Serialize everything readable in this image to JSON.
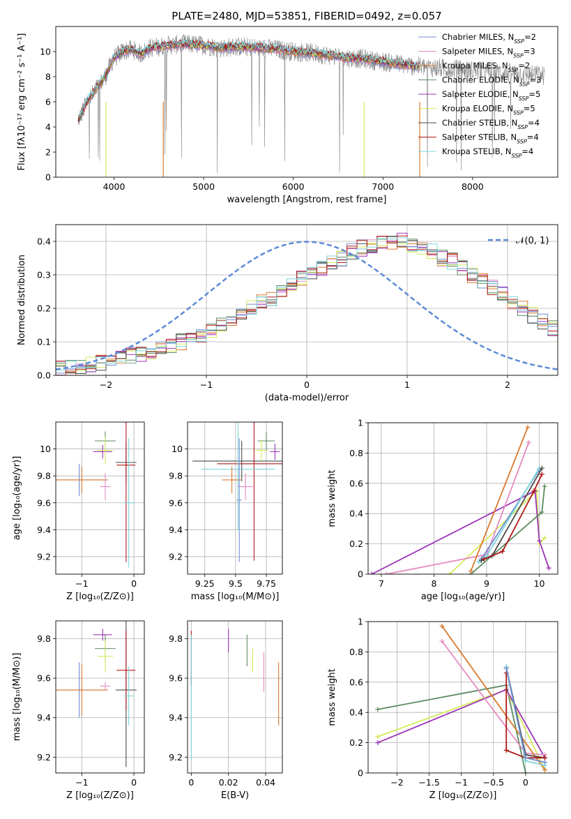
{
  "title": "PLATE=2480, MJD=53851, FIBERID=0492, z=0.057",
  "colors": {
    "Chabrier MILES": "#6f8dcf",
    "Salpeter MILES": "#e58ac2",
    "Kroupa MILES": "#d9792d",
    "Chabrier ELODIE": "#5b8a5f",
    "Salpeter ELODIE": "#9c33b8",
    "Kroupa ELODIE": "#d4eb5b",
    "Chabrier STELIB": "#4a4a4a",
    "Salpeter STELIB": "#b01818",
    "Kroupa STELIB": "#7dd4dc",
    "data": "#808080",
    "gauss": "#5b8ad6"
  },
  "chart_data": [
    {
      "id": "spectrum",
      "type": "line",
      "xlabel": "wavelength [Angstrom, rest frame]",
      "ylabel": "Flux [fλ10⁻¹⁷ erg cm⁻² s⁻¹ A⁻¹]",
      "xlim": [
        3350,
        8950
      ],
      "ylim": [
        0,
        12
      ],
      "xticks": [
        "4000",
        "5000",
        "6000",
        "7000",
        "8000"
      ],
      "yticks": [
        "0",
        "2",
        "4",
        "6",
        "8",
        "10"
      ],
      "legend_position": "top-right",
      "legend": [
        {
          "name": "Chabrier MILES, N",
          "sub": "SSP",
          "val": "=2"
        },
        {
          "name": "Salpeter MILES, N",
          "sub": "SSP",
          "val": "=3"
        },
        {
          "name": "Kroupa MILES, N",
          "sub": "SSP",
          "val": "=2"
        },
        {
          "name": "Chabrier ELODIE, N",
          "sub": "SSP",
          "val": "=3"
        },
        {
          "name": "Salpeter ELODIE, N",
          "sub": "SSP",
          "val": "=5"
        },
        {
          "name": "Kroupa ELODIE, N",
          "sub": "SSP",
          "val": "=5"
        },
        {
          "name": "Chabrier STELIB, N",
          "sub": "SSP",
          "val": "=4"
        },
        {
          "name": "Salpeter STELIB, N",
          "sub": "SSP",
          "val": "=4"
        },
        {
          "name": "Kroupa STELIB, N",
          "sub": "SSP",
          "val": "=4"
        }
      ],
      "continuum": {
        "x": [
          3600,
          3700,
          3800,
          3900,
          4000,
          4100,
          4200,
          4300,
          4400,
          4500,
          4600,
          4800,
          5000,
          5200,
          5400,
          5600,
          5800,
          6000,
          6200,
          6400,
          6600,
          6800,
          7000,
          7200,
          7400,
          7600,
          7800,
          8000,
          8200,
          8400,
          8600,
          8800
        ],
        "y": [
          4.5,
          6.0,
          7.0,
          8.0,
          9.5,
          10.0,
          10.2,
          9.8,
          10.3,
          10.4,
          10.5,
          10.6,
          10.5,
          10.3,
          10.4,
          10.3,
          10.2,
          10.0,
          9.9,
          9.7,
          9.5,
          9.4,
          9.2,
          9.0,
          8.8,
          8.7,
          8.6,
          8.5,
          8.4,
          8.3,
          8.2,
          8.1
        ]
      }
    },
    {
      "id": "residuals",
      "type": "histogram",
      "xlabel": "(data-model)/error",
      "ylabel": "Normed distribution",
      "xlim": [
        -2.5,
        2.5
      ],
      "ylim": [
        0,
        0.45
      ],
      "xticks": [
        "−2",
        "−1",
        "0",
        "1",
        "2"
      ],
      "yticks": [
        "0.0",
        "0.1",
        "0.2",
        "0.3",
        "0.4"
      ],
      "gauss_label": "𝒩(0, 1)",
      "bin_width": 0.1,
      "bin_start": -2.5,
      "counts": [
        0.02,
        0.02,
        0.03,
        0.03,
        0.04,
        0.04,
        0.05,
        0.06,
        0.06,
        0.07,
        0.08,
        0.09,
        0.1,
        0.11,
        0.12,
        0.13,
        0.15,
        0.16,
        0.18,
        0.2,
        0.22,
        0.23,
        0.25,
        0.27,
        0.29,
        0.31,
        0.32,
        0.34,
        0.35,
        0.37,
        0.38,
        0.39,
        0.4,
        0.4,
        0.4,
        0.39,
        0.38,
        0.37,
        0.35,
        0.34,
        0.32,
        0.3,
        0.28,
        0.26,
        0.24,
        0.22,
        0.2,
        0.18,
        0.16,
        0.14
      ]
    },
    {
      "id": "age-vs-Z",
      "type": "errorbar",
      "xlabel": "Z [log₁₀(Z/Z⊙)]",
      "ylabel": "age  [log₁₀(age/yr)]",
      "xlim": [
        -1.5,
        0.2
      ],
      "ylim": [
        9.07,
        10.2
      ],
      "xticks": [
        -1,
        0
      ],
      "yticks": [
        9.2,
        9.4,
        9.6,
        9.8,
        10.0
      ],
      "points": [
        {
          "s": "Chabrier MILES",
          "x": -1.05,
          "y": 9.77,
          "xe": 0.45,
          "ye": 0.12
        },
        {
          "s": "Kroupa MILES",
          "x": -1.0,
          "y": 9.77,
          "xe": 0.5,
          "ye": 0.1
        },
        {
          "s": "Salpeter MILES",
          "x": -0.55,
          "y": 9.72,
          "xe": 0.1,
          "ye": 0.1
        },
        {
          "s": "Chabrier ELODIE",
          "x": -0.55,
          "y": 10.06,
          "xe": 0.2,
          "ye": 0.07
        },
        {
          "s": "Salpeter ELODIE",
          "x": -0.6,
          "y": 9.98,
          "xe": 0.18,
          "ye": 0.05
        },
        {
          "s": "Kroupa ELODIE",
          "x": -0.55,
          "y": 9.99,
          "xe": 0.15,
          "ye": 0.1
        },
        {
          "s": "Chabrier STELIB",
          "x": -0.15,
          "y": 9.9,
          "xe": 0.2,
          "ye": 0.15
        },
        {
          "s": "Salpeter STELIB",
          "x": -0.15,
          "y": 9.88,
          "xe": 0.18,
          "ye": 0.72
        },
        {
          "s": "Kroupa STELIB",
          "x": -0.1,
          "y": 9.6,
          "xe": 0.1,
          "ye": 0.48
        }
      ]
    },
    {
      "id": "age-vs-mass",
      "type": "errorbar",
      "xlabel": "mass [log₁₀(M/M⊙)]",
      "ylabel": "",
      "xlim": [
        9.11,
        9.88
      ],
      "ylim": [
        9.07,
        10.2
      ],
      "xticks": [
        9.25,
        9.5,
        9.75
      ],
      "yticks": [
        9.2,
        9.4,
        9.6,
        9.8,
        10.0
      ],
      "points": [
        {
          "s": "Chabrier STELIB",
          "x": 9.55,
          "y": 9.91,
          "xe": 0.4,
          "ye": 0.15
        },
        {
          "s": "Salpeter STELIB",
          "x": 9.65,
          "y": 9.89,
          "xe": 0.3,
          "ye": 0.72
        },
        {
          "s": "Kroupa STELIB",
          "x": 9.52,
          "y": 9.85,
          "xe": 0.3,
          "ye": 0.45
        },
        {
          "s": "Kroupa MILES",
          "x": 9.47,
          "y": 9.77,
          "xe": 0.08,
          "ye": 0.1
        },
        {
          "s": "Salpeter MILES",
          "x": 9.58,
          "y": 9.72,
          "xe": 0.06,
          "ye": 0.1
        },
        {
          "s": "Chabrier MILES",
          "x": 9.53,
          "y": 9.62,
          "xe": 0.02,
          "ye": 0.46
        },
        {
          "s": "Chabrier ELODIE",
          "x": 9.75,
          "y": 10.06,
          "xe": 0.07,
          "ye": 0.07
        },
        {
          "s": "Salpeter ELODIE",
          "x": 9.82,
          "y": 9.98,
          "xe": 0.04,
          "ye": 0.06
        },
        {
          "s": "Kroupa ELODIE",
          "x": 9.71,
          "y": 9.99,
          "xe": 0.05,
          "ye": 0.08
        }
      ]
    },
    {
      "id": "weight-vs-age",
      "type": "line",
      "xlabel": "age  [log₁₀(age/yr)]",
      "ylabel": "mass weight",
      "xlim": [
        6.75,
        10.35
      ],
      "ylim": [
        0,
        1
      ],
      "xticks": [
        7,
        8,
        9,
        10
      ],
      "yticks": [
        0.0,
        0.2,
        0.4,
        0.6,
        0.8,
        1.0
      ],
      "series": [
        {
          "s": "Kroupa ELODIE",
          "x": [
            8.3,
            9.95,
            10.0,
            10.1
          ],
          "y": [
            0.0,
            0.55,
            0.2,
            0.24
          ]
        },
        {
          "s": "Salpeter ELODIE",
          "x": [
            6.82,
            9.92,
            10.0,
            10.18
          ],
          "y": [
            0.0,
            0.55,
            0.22,
            0.04
          ]
        },
        {
          "s": "Chabrier ELODIE",
          "x": [
            8.7,
            10.05,
            10.1
          ],
          "y": [
            0.0,
            0.41,
            0.58
          ]
        },
        {
          "s": "Salpeter MILES",
          "x": [
            7.1,
            9.0,
            9.8
          ],
          "y": [
            0.0,
            0.13,
            0.87
          ]
        },
        {
          "s": "Chabrier MILES",
          "x": [
            8.9,
            10.0
          ],
          "y": [
            0.1,
            0.69
          ]
        },
        {
          "s": "Kroupa STELIB",
          "x": [
            8.85,
            9.0,
            10.0
          ],
          "y": [
            0.08,
            0.12,
            0.7
          ]
        },
        {
          "s": "Chabrier STELIB",
          "x": [
            8.9,
            9.1,
            10.05
          ],
          "y": [
            0.09,
            0.12,
            0.7
          ]
        },
        {
          "s": "Salpeter STELIB",
          "x": [
            8.95,
            9.3,
            9.9,
            10.05
          ],
          "y": [
            0.1,
            0.15,
            0.55,
            0.66
          ]
        },
        {
          "s": "Kroupa MILES",
          "x": [
            8.7,
            9.78
          ],
          "y": [
            0.02,
            0.97
          ]
        }
      ]
    },
    {
      "id": "mass-vs-Z",
      "type": "errorbar",
      "xlabel": "Z [log₁₀(Z/Z⊙)]",
      "ylabel": "mass [log₁₀(M/M⊙)]",
      "xlim": [
        -1.5,
        0.2
      ],
      "ylim": [
        9.12,
        9.89
      ],
      "xticks": [
        -1,
        0
      ],
      "yticks": [
        9.2,
        9.4,
        9.6,
        9.8
      ],
      "points": [
        {
          "s": "Chabrier MILES",
          "x": -1.05,
          "y": 9.54,
          "xe": 0.45,
          "ye": 0.14
        },
        {
          "s": "Kroupa MILES",
          "x": -1.0,
          "y": 9.54,
          "xe": 0.5,
          "ye": 0.13
        },
        {
          "s": "Salpeter MILES",
          "x": -0.55,
          "y": 9.56,
          "xe": 0.1,
          "ye": 0.02
        },
        {
          "s": "Chabrier ELODIE",
          "x": -0.55,
          "y": 9.75,
          "xe": 0.2,
          "ye": 0.07
        },
        {
          "s": "Salpeter ELODIE",
          "x": -0.6,
          "y": 9.82,
          "xe": 0.18,
          "ye": 0.03
        },
        {
          "s": "Kroupa ELODIE",
          "x": -0.55,
          "y": 9.71,
          "xe": 0.15,
          "ye": 0.08
        },
        {
          "s": "Chabrier STELIB",
          "x": -0.15,
          "y": 9.54,
          "xe": 0.2,
          "ye": 0.39
        },
        {
          "s": "Salpeter STELIB",
          "x": -0.15,
          "y": 9.64,
          "xe": 0.18,
          "ye": 0.2
        },
        {
          "s": "Kroupa STELIB",
          "x": -0.1,
          "y": 9.51,
          "xe": 0.1,
          "ye": 0.15
        }
      ]
    },
    {
      "id": "mass-vs-ebv",
      "type": "errorbar",
      "xlabel": "E(B-V)",
      "ylabel": "",
      "xlim": [
        -0.002,
        0.049
      ],
      "ylim": [
        9.12,
        9.89
      ],
      "xticks": [
        0.0,
        0.02,
        0.04
      ],
      "yticks": [
        9.2,
        9.4,
        9.6,
        9.8
      ],
      "points": [
        {
          "s": "Salpeter STELIB",
          "x": 0.0,
          "y": 9.7,
          "xe": 0,
          "ye": 0.14
        },
        {
          "s": "Kroupa STELIB",
          "x": 0.0,
          "y": 9.5,
          "xe": 0,
          "ye": 0.32
        },
        {
          "s": "Salpeter ELODIE",
          "x": 0.02,
          "y": 9.79,
          "xe": 0,
          "ye": 0.06
        },
        {
          "s": "Chabrier ELODIE",
          "x": 0.03,
          "y": 9.74,
          "xe": 0,
          "ye": 0.08
        },
        {
          "s": "Kroupa ELODIE",
          "x": 0.033,
          "y": 9.69,
          "xe": 0,
          "ye": 0.06
        },
        {
          "s": "Salpeter MILES",
          "x": 0.039,
          "y": 9.63,
          "xe": 0,
          "ye": 0.1
        },
        {
          "s": "Kroupa MILES",
          "x": 0.047,
          "y": 9.52,
          "xe": 0,
          "ye": 0.16
        }
      ]
    },
    {
      "id": "weight-vs-Z",
      "type": "line",
      "xlabel": "Z [log₁₀(Z/Z⊙)]",
      "ylabel": "mass weight",
      "xlim": [
        -2.45,
        0.5
      ],
      "ylim": [
        0,
        1
      ],
      "xticks": [
        -2.0,
        -1.5,
        -1.0,
        -0.5,
        0.0
      ],
      "yticks": [
        0.0,
        0.2,
        0.4,
        0.6,
        0.8,
        1.0
      ],
      "series": [
        {
          "s": "Chabrier ELODIE",
          "x": [
            -2.3,
            -0.3,
            0.0
          ],
          "y": [
            0.42,
            0.58,
            0.0
          ]
        },
        {
          "s": "Kroupa ELODIE",
          "x": [
            -2.3,
            -0.3,
            0.3
          ],
          "y": [
            0.24,
            0.55,
            0.02
          ]
        },
        {
          "s": "Salpeter ELODIE",
          "x": [
            -2.3,
            -0.3,
            0.3
          ],
          "y": [
            0.2,
            0.55,
            0.1
          ]
        },
        {
          "s": "Salpeter MILES",
          "x": [
            -1.3,
            0.0,
            0.3
          ],
          "y": [
            0.87,
            0.13,
            0.12
          ]
        },
        {
          "s": "Kroupa MILES",
          "x": [
            -1.3,
            0.3
          ],
          "y": [
            0.97,
            0.02
          ]
        },
        {
          "s": "Chabrier STELIB",
          "x": [
            -0.3,
            0.0,
            0.3
          ],
          "y": [
            0.7,
            0.12,
            0.1
          ]
        },
        {
          "s": "Salpeter STELIB",
          "x": [
            -0.3,
            -0.3,
            0.0,
            0.3
          ],
          "y": [
            0.66,
            0.15,
            0.1,
            0.1
          ]
        },
        {
          "s": "Kroupa STELIB",
          "x": [
            -0.3,
            0.0,
            0.3
          ],
          "y": [
            0.7,
            0.08,
            0.05
          ]
        },
        {
          "s": "Chabrier MILES",
          "x": [
            -0.3,
            0.0,
            0.3
          ],
          "y": [
            0.69,
            0.1,
            0.07
          ]
        }
      ]
    }
  ]
}
